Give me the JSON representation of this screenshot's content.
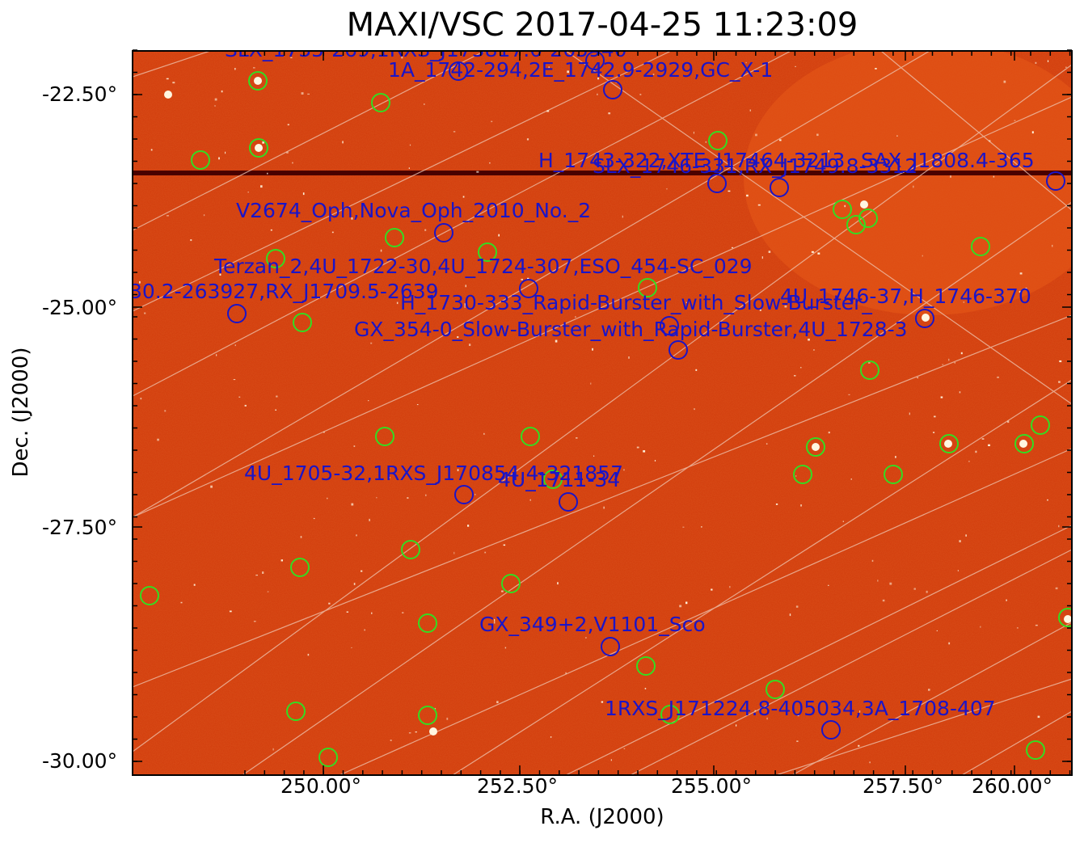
{
  "title": "MAXI/VSC 2017-04-25 11:23:09",
  "axes": {
    "xlabel": "R.A. (J2000)",
    "ylabel": "Dec. (J2000)",
    "xticks": [
      "250.00°",
      "252.50°",
      "255.00°",
      "257.50°",
      "260.00°"
    ],
    "yticks": [
      "-22.50°",
      "-25.00°",
      "-27.50°",
      "-30.00°"
    ]
  },
  "colors": {
    "background_map": "#d23c0c",
    "known_source_marker": "#1a14c8",
    "detected_source_marker": "#33dd22",
    "grid": "#f0c8b4"
  },
  "source_labels": [
    "SLX_1735-269,1RXS_J173817.0-265940",
    "1A_1742-294,2E_1742.9-2929,GC_X-1",
    "H_1743-322,XTE_J17464-3213",
    "SLX_1746-331,RX_J1749.8-3312",
    "SAX_J1808.4-365",
    "V2674_Oph,Nova_Oph_2010_No._2",
    "Terzan_2,4U_1722-30,4U_1724-307,ESO_454-SC_029",
    "30.2-263927,RX_J1709.5-2639",
    "H_1730-333_Rapid-Burster_with_Slow-Burster_",
    "4U_1746-37,H_1746-370",
    "GX_354-0_Slow-Burster_with_Rapid-Burster,4U_1728-3",
    "4U_1705-32,1RXS_J170854.4-321857",
    "4U_1711-34",
    "GX_349+2,V1101_Sco",
    "1RXS_J171224.8-405034,3A_1708-407"
  ]
}
